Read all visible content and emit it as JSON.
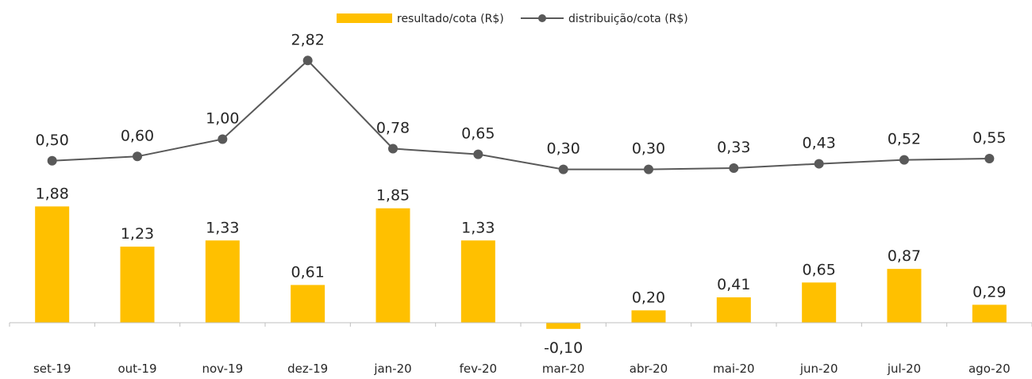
{
  "chart_data": {
    "type": "bar+line",
    "categories": [
      "set-19",
      "out-19",
      "nov-19",
      "dez-19",
      "jan-20",
      "fev-20",
      "mar-20",
      "abr-20",
      "mai-20",
      "jun-20",
      "jul-20",
      "ago-20"
    ],
    "series": [
      {
        "name": "resultado/cota (R$)",
        "type": "bar",
        "color": "#FFC000",
        "values": [
          1.88,
          1.23,
          1.33,
          0.61,
          1.85,
          1.33,
          -0.1,
          0.2,
          0.41,
          0.65,
          0.87,
          0.29
        ],
        "labels": [
          "1,88",
          "1,23",
          "1,33",
          "0,61",
          "1,85",
          "1,33",
          "-0,10",
          "0,20",
          "0,41",
          "0,65",
          "0,87",
          "0,29"
        ]
      },
      {
        "name": "distribuição/cota (R$)",
        "type": "line",
        "color": "#595959",
        "values": [
          0.5,
          0.6,
          1.0,
          2.82,
          0.78,
          0.65,
          0.3,
          0.3,
          0.33,
          0.43,
          0.52,
          0.55
        ],
        "labels": [
          "0,50",
          "0,60",
          "1,00",
          "2,82",
          "0,78",
          "0,65",
          "0,30",
          "0,30",
          "0,33",
          "0,43",
          "0,52",
          "0,55"
        ]
      }
    ],
    "legend_position": "top-center",
    "grid": false
  }
}
